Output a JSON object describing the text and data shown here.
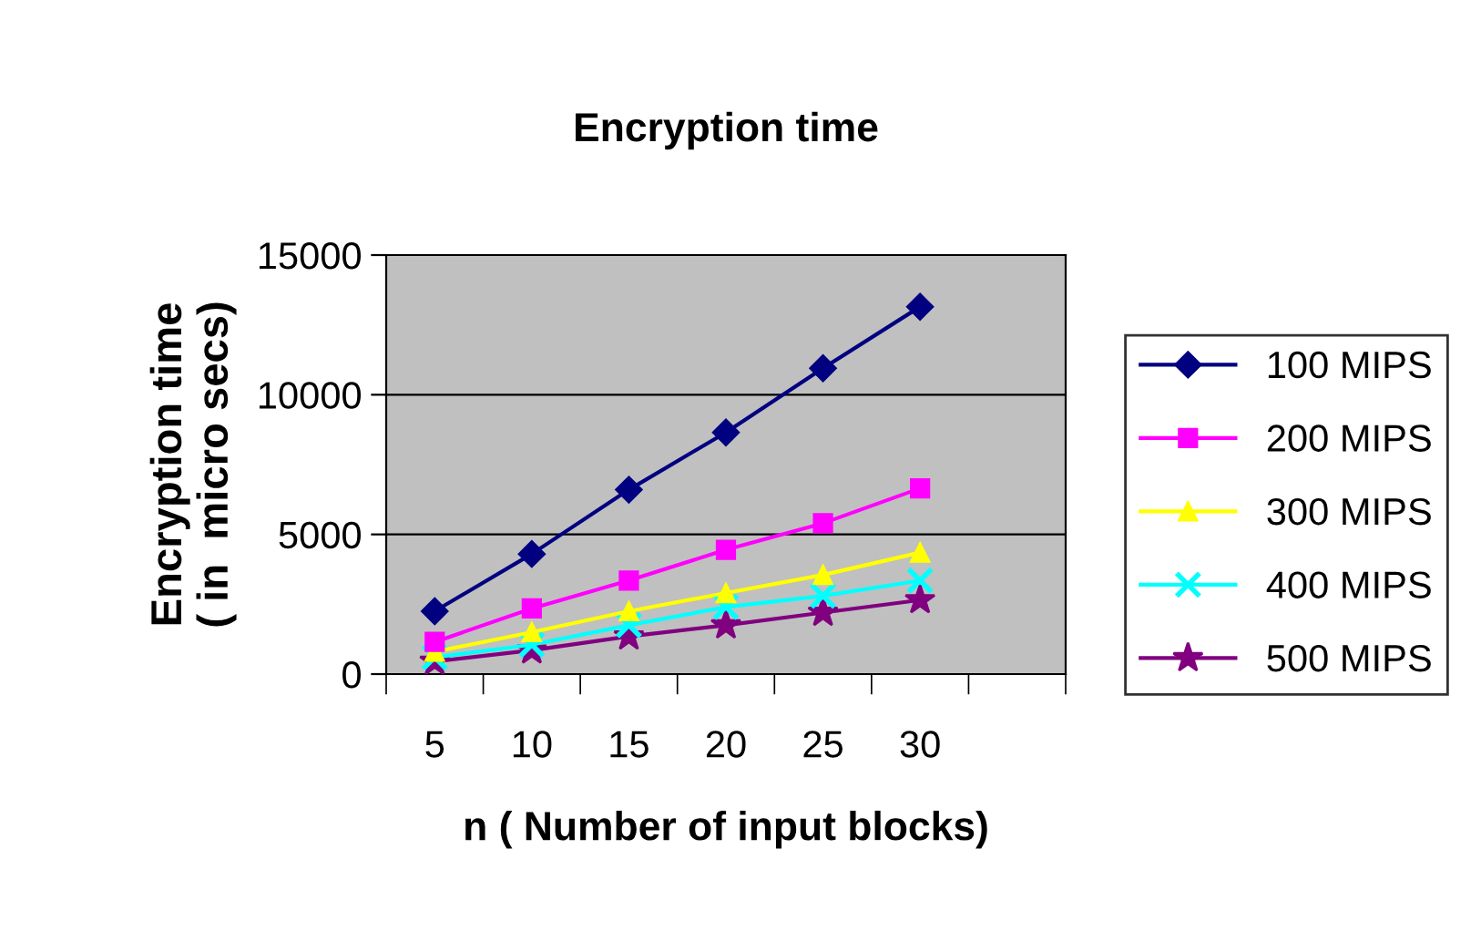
{
  "chart_data": {
    "type": "line",
    "title": "Encryption time",
    "xlabel": "n ( Number of input blocks)",
    "ylabel": "Encryption time\n( in  micro secs)",
    "categories": [
      "5",
      "10",
      "15",
      "20",
      "25",
      "30",
      null
    ],
    "series": [
      {
        "name": "100 MIPS",
        "color": "#000080",
        "marker": "diamond",
        "values": [
          2250,
          4300,
          6600,
          8650,
          10950,
          13150,
          null
        ]
      },
      {
        "name": "200 MIPS",
        "color": "#ff00ff",
        "marker": "square",
        "values": [
          1150,
          2350,
          3350,
          4450,
          5400,
          6650,
          null
        ]
      },
      {
        "name": "300 MIPS",
        "color": "#ffff00",
        "marker": "triangle",
        "values": [
          800,
          1500,
          2250,
          2900,
          3550,
          4350,
          null
        ]
      },
      {
        "name": "400 MIPS",
        "color": "#00ffff",
        "marker": "cross",
        "values": [
          600,
          1050,
          1750,
          2400,
          2800,
          3350,
          null
        ]
      },
      {
        "name": "500 MIPS",
        "color": "#800080",
        "marker": "star",
        "values": [
          450,
          850,
          1350,
          1750,
          2200,
          2650,
          null
        ]
      }
    ],
    "ylim": [
      0,
      15000
    ],
    "yticks": [
      0,
      5000,
      10000,
      15000
    ],
    "grid": "y",
    "legend": "right"
  }
}
